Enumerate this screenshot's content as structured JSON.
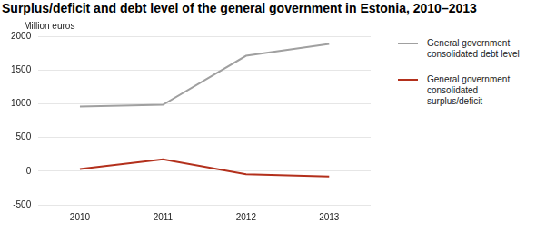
{
  "chart_data": {
    "type": "line",
    "title": "Surplus/deficit and debt level of the general government in Estonia, 2010–2013",
    "ylabel": "Million euros",
    "categories": [
      "2010",
      "2011",
      "2012",
      "2013"
    ],
    "series": [
      {
        "name": "General government consolidated debt level",
        "color": "#a0a0a0",
        "values": [
          960,
          985,
          1710,
          1885
        ]
      },
      {
        "name": "General government consolidated surplus/deficit",
        "color": "#b3301c",
        "values": [
          30,
          175,
          -45,
          -80
        ]
      }
    ],
    "ylim": [
      -500,
      2000
    ],
    "yticks": [
      -500,
      0,
      500,
      1000,
      1500,
      2000
    ],
    "grid": true,
    "legend": "top right"
  }
}
